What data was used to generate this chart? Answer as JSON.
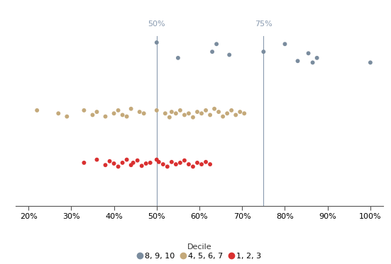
{
  "xlim": [
    0.17,
    1.03
  ],
  "ylim": [
    0.0,
    1.25
  ],
  "vlines": [
    0.5,
    0.75
  ],
  "vline_labels": [
    "50%",
    "75%"
  ],
  "vline_color": "#8a9bb0",
  "vline_label_color": "#8a9bb0",
  "background_color": "#ffffff",
  "decile_high_color": "#7a8c9e",
  "decile_mid_color": "#c4a97a",
  "decile_low_color": "#d93030",
  "decile_high_label": "8, 9, 10",
  "decile_mid_label": "4, 5, 6, 7",
  "decile_low_label": "1, 2, 3",
  "decile_label": "Decile",
  "marker_size": 18,
  "xtick_labels": [
    "20%",
    "30%",
    "40%",
    "50%",
    "60%",
    "70%",
    "80%",
    "90%",
    "100%"
  ],
  "xtick_values": [
    0.2,
    0.3,
    0.4,
    0.5,
    0.6,
    0.7,
    0.8,
    0.9,
    1.0
  ],
  "scatter_high_x": [
    0.5,
    0.55,
    0.63,
    0.64,
    0.67,
    0.75,
    0.8,
    0.83,
    0.855,
    0.865,
    0.875,
    1.0
  ],
  "scatter_high_y": [
    1.06,
    0.96,
    1.0,
    1.05,
    0.98,
    1.0,
    1.05,
    0.94,
    0.99,
    0.93,
    0.96,
    0.93
  ],
  "scatter_mid_x": [
    0.22,
    0.27,
    0.29,
    0.33,
    0.35,
    0.36,
    0.38,
    0.4,
    0.41,
    0.42,
    0.43,
    0.44,
    0.46,
    0.47,
    0.5,
    0.52,
    0.53,
    0.535,
    0.545,
    0.555,
    0.565,
    0.575,
    0.585,
    0.595,
    0.605,
    0.615,
    0.625,
    0.635,
    0.645,
    0.655,
    0.665,
    0.675,
    0.685,
    0.695,
    0.705
  ],
  "scatter_mid_y": [
    0.62,
    0.6,
    0.58,
    0.62,
    0.59,
    0.61,
    0.58,
    0.6,
    0.62,
    0.59,
    0.58,
    0.63,
    0.61,
    0.6,
    0.62,
    0.6,
    0.575,
    0.61,
    0.6,
    0.62,
    0.59,
    0.6,
    0.575,
    0.61,
    0.6,
    0.62,
    0.59,
    0.63,
    0.61,
    0.58,
    0.6,
    0.62,
    0.59,
    0.61,
    0.6
  ],
  "scatter_low_x": [
    0.33,
    0.36,
    0.38,
    0.39,
    0.4,
    0.41,
    0.42,
    0.43,
    0.44,
    0.445,
    0.455,
    0.465,
    0.475,
    0.485,
    0.5,
    0.505,
    0.515,
    0.525,
    0.535,
    0.545,
    0.555,
    0.565,
    0.575,
    0.585,
    0.595,
    0.605,
    0.615,
    0.625
  ],
  "scatter_low_y": [
    0.28,
    0.3,
    0.265,
    0.29,
    0.275,
    0.255,
    0.28,
    0.3,
    0.265,
    0.28,
    0.295,
    0.26,
    0.275,
    0.28,
    0.3,
    0.285,
    0.27,
    0.255,
    0.285,
    0.27,
    0.28,
    0.295,
    0.27,
    0.255,
    0.28,
    0.27,
    0.285,
    0.27
  ]
}
